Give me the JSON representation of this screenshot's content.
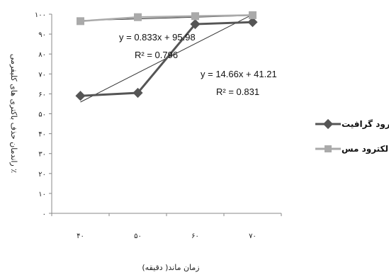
{
  "chart_data": {
    "type": "line",
    "x": [
      "۴۰",
      "۵۰",
      "۶۰",
      "۷۰"
    ],
    "ylim": [
      0,
      100
    ],
    "yticks": [
      "۰",
      "۱۰",
      "۲۰",
      "۳۰",
      "۴۰",
      "۵۰",
      "۶۰",
      "۷۰",
      "۸۰",
      "۹۰",
      "۱۰۰"
    ],
    "xlabel": "زمان ماند( دقیقه)",
    "ylabel": "راندمان حذف باکتری های کلیفرمی ٪",
    "series": [
      {
        "name": "الکترود گرافیت",
        "values": [
          59,
          60.5,
          95,
          96
        ],
        "color": "#555555",
        "marker": "diamond",
        "trendline": {
          "slope": 14.66,
          "intercept": 41.21
        },
        "equation": "y = 14.66x + 41.21",
        "r2": "R² = 0.831"
      },
      {
        "name": "الکترود مس",
        "values": [
          96.5,
          98.5,
          99,
          99.5
        ],
        "color": "#aaaaaa",
        "marker": "square",
        "trendline": {
          "slope": 0.833,
          "intercept": 95.98
        },
        "equation": "y = 0.833x + 95.98",
        "r2": "R² = 0.796"
      }
    ],
    "legend_position": "right",
    "grid": false
  }
}
